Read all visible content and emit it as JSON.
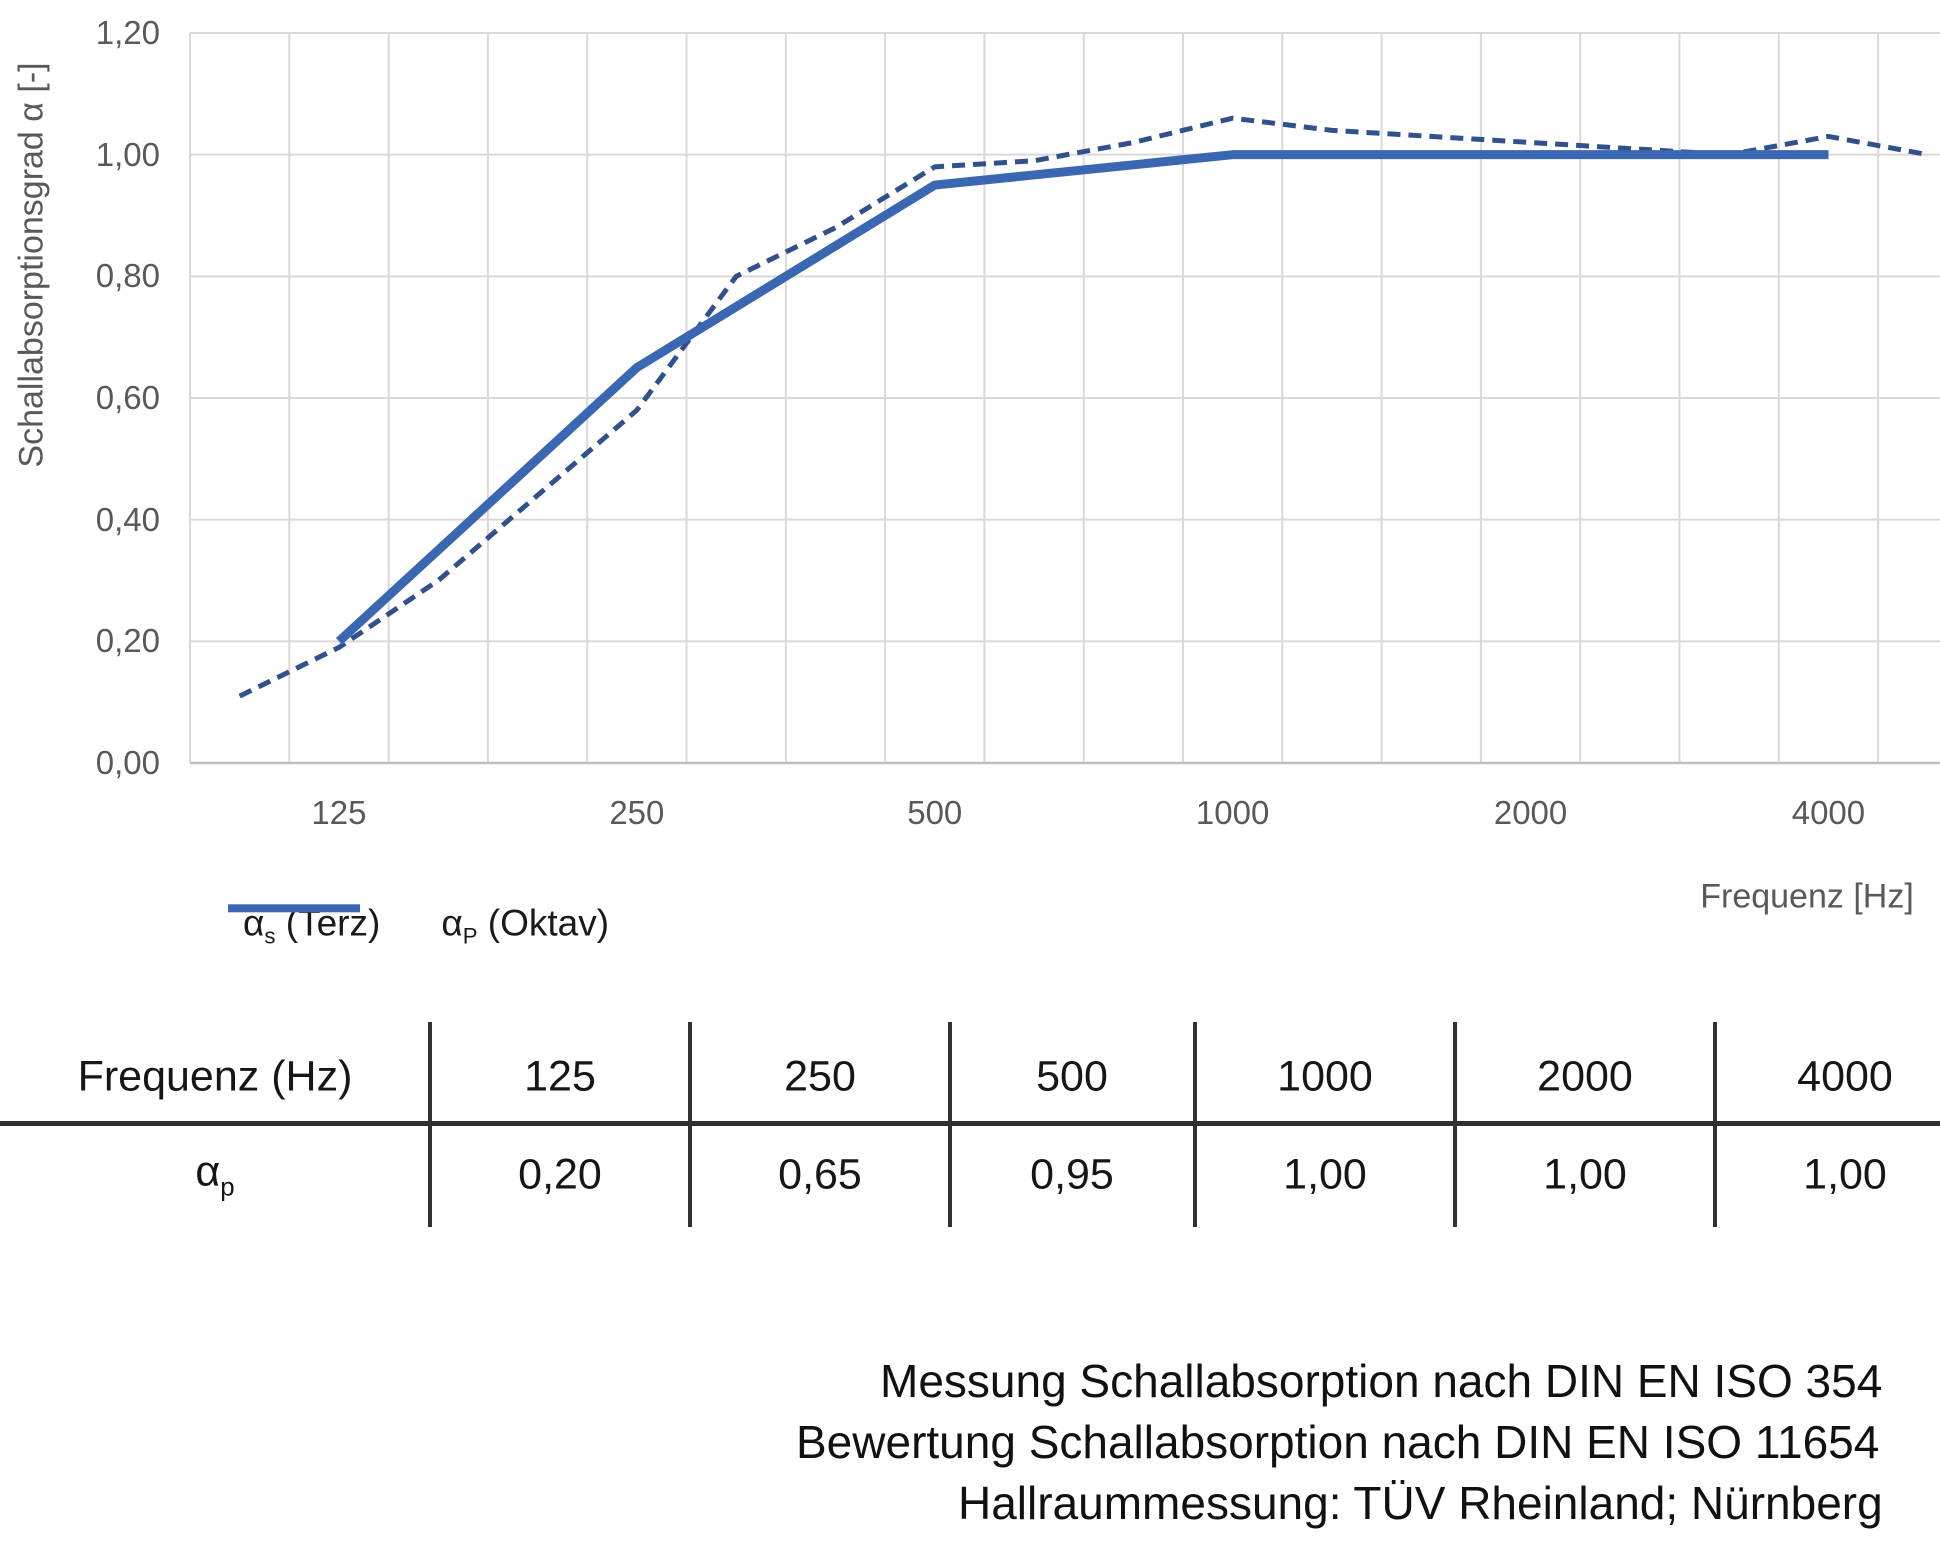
{
  "figure": {
    "background": "#FFFFFF"
  },
  "chart_data": {
    "type": "line",
    "title": "",
    "xlabel": "Frequenz [Hz]",
    "ylabel": "Schallabsorptionsgrad α [-]",
    "ylim": [
      0,
      1.2
    ],
    "ytick_step": 0.2,
    "grid": true,
    "legend_position": "bottom-left",
    "categories": [
      100,
      125,
      160,
      200,
      250,
      315,
      400,
      500,
      630,
      800,
      1000,
      1250,
      1600,
      2000,
      2500,
      3150,
      4000,
      5000
    ],
    "ytick_labels": [
      "0,00",
      "0,20",
      "0,40",
      "0,60",
      "0,80",
      "1,00",
      "1,20"
    ],
    "xtick_categories": [
      125,
      250,
      500,
      1000,
      2000,
      4000
    ],
    "xtick_labels": [
      "125",
      "250",
      "500",
      "1000",
      "2000",
      "4000"
    ],
    "series": [
      {
        "name": "αs (Terz)",
        "style": "dashed",
        "color": "#31508E",
        "values": [
          0.11,
          0.19,
          0.3,
          0.44,
          0.58,
          0.8,
          0.88,
          0.98,
          0.99,
          1.02,
          1.06,
          1.04,
          1.03,
          1.02,
          1.01,
          1.0,
          1.03,
          1.0
        ]
      },
      {
        "name": "αP (Oktav)",
        "style": "solid",
        "color": "#3A67B2",
        "categories": [
          125,
          250,
          500,
          1000,
          2000,
          4000
        ],
        "values": [
          0.2,
          0.65,
          0.95,
          1.0,
          1.0,
          1.0
        ]
      }
    ]
  },
  "axes": {
    "y_title": "Schallabsorptionsgrad α [-]",
    "x_title": "Frequenz [Hz]"
  },
  "legend": {
    "terz": {
      "base": "α",
      "sub": "s",
      "rest": " (Terz)"
    },
    "oktav": {
      "base": "α",
      "sub": "P",
      "rest": " (Oktav)"
    }
  },
  "table": {
    "headers": [
      "Frequenz (Hz)",
      "125",
      "250",
      "500",
      "1000",
      "2000",
      "4000"
    ],
    "row_label": {
      "base": "α",
      "sub": "p"
    },
    "values": [
      "0,20",
      "0,65",
      "0,95",
      "1,00",
      "1,00",
      "1,00"
    ]
  },
  "footer": {
    "line1": "Messung Schallabsorption nach DIN EN ISO 354",
    "line2": "Bewertung Schallabsorption nach DIN EN ISO 11654",
    "line3": "Hallraummessung: TÜV Rheinland; Nürnberg"
  },
  "colors": {
    "terz_line": "#31508E",
    "oktav_line": "#3A67B2",
    "gridline": "#D9D9D9",
    "axis_line": "#BFBFBF",
    "axis_text": "#595959",
    "table_text": "#161616",
    "rule": "#2E2E2E"
  }
}
